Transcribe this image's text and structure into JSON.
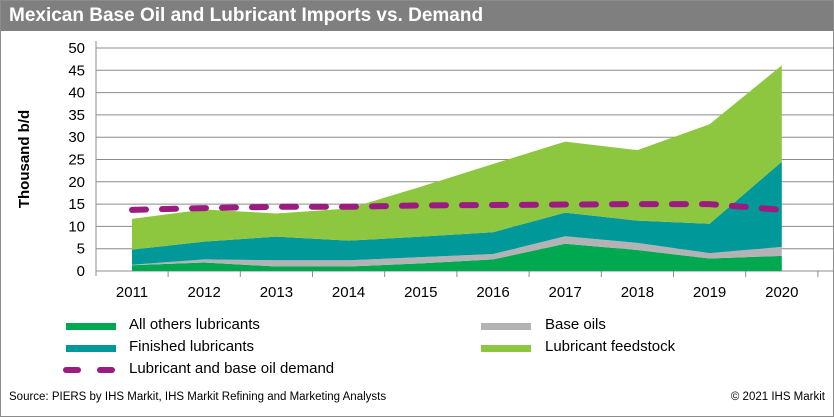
{
  "title": "Mexican Base Oil and Lubricant Imports vs. Demand",
  "chart_data": {
    "type": "area",
    "stacked": true,
    "title": "Mexican Base Oil and Lubricant Imports vs. Demand",
    "xlabel": "",
    "ylabel": "Thousand b/d",
    "ylim": [
      0,
      50
    ],
    "yticks": [
      "0",
      "5",
      "10",
      "15",
      "20",
      "25",
      "30",
      "35",
      "40",
      "45",
      "50"
    ],
    "categories": [
      "2011",
      "2012",
      "2013",
      "2014",
      "2015",
      "2016",
      "2017",
      "2018",
      "2019",
      "2020"
    ],
    "grid": true,
    "legend_position": "bottom",
    "series": [
      {
        "name": "All others lubricants",
        "color": "#00a84f",
        "values": [
          1.3,
          1.9,
          1.0,
          1.0,
          1.7,
          2.6,
          6.1,
          4.7,
          2.8,
          3.4
        ]
      },
      {
        "name": "Base oils",
        "color": "#b3b3b6",
        "values": [
          0.1,
          0.7,
          1.4,
          1.4,
          1.4,
          1.2,
          1.7,
          1.6,
          1.2,
          2.0
        ]
      },
      {
        "name": "Finished lubricants",
        "color": "#009899",
        "values": [
          3.4,
          4.0,
          5.3,
          4.4,
          4.6,
          4.9,
          5.3,
          5.0,
          6.6,
          19.1
        ]
      },
      {
        "name": "Lubricant feedstock",
        "color": "#8dc63f",
        "values": [
          6.9,
          7.2,
          5.2,
          7.2,
          11.2,
          15.3,
          15.9,
          15.8,
          22.3,
          21.6
        ]
      }
    ],
    "line_series": {
      "name": "Lubricant and base oil demand",
      "color": "#9b1b80",
      "style": "dashed",
      "values": [
        13.7,
        14.1,
        14.4,
        14.4,
        14.7,
        14.8,
        14.9,
        15.0,
        15.0,
        13.7
      ]
    }
  },
  "footer": {
    "source": "Source: PIERS by IHS Markit, IHS Markit Refining and Marketing Analysts",
    "copyright": "© 2021 IHS Markit"
  }
}
